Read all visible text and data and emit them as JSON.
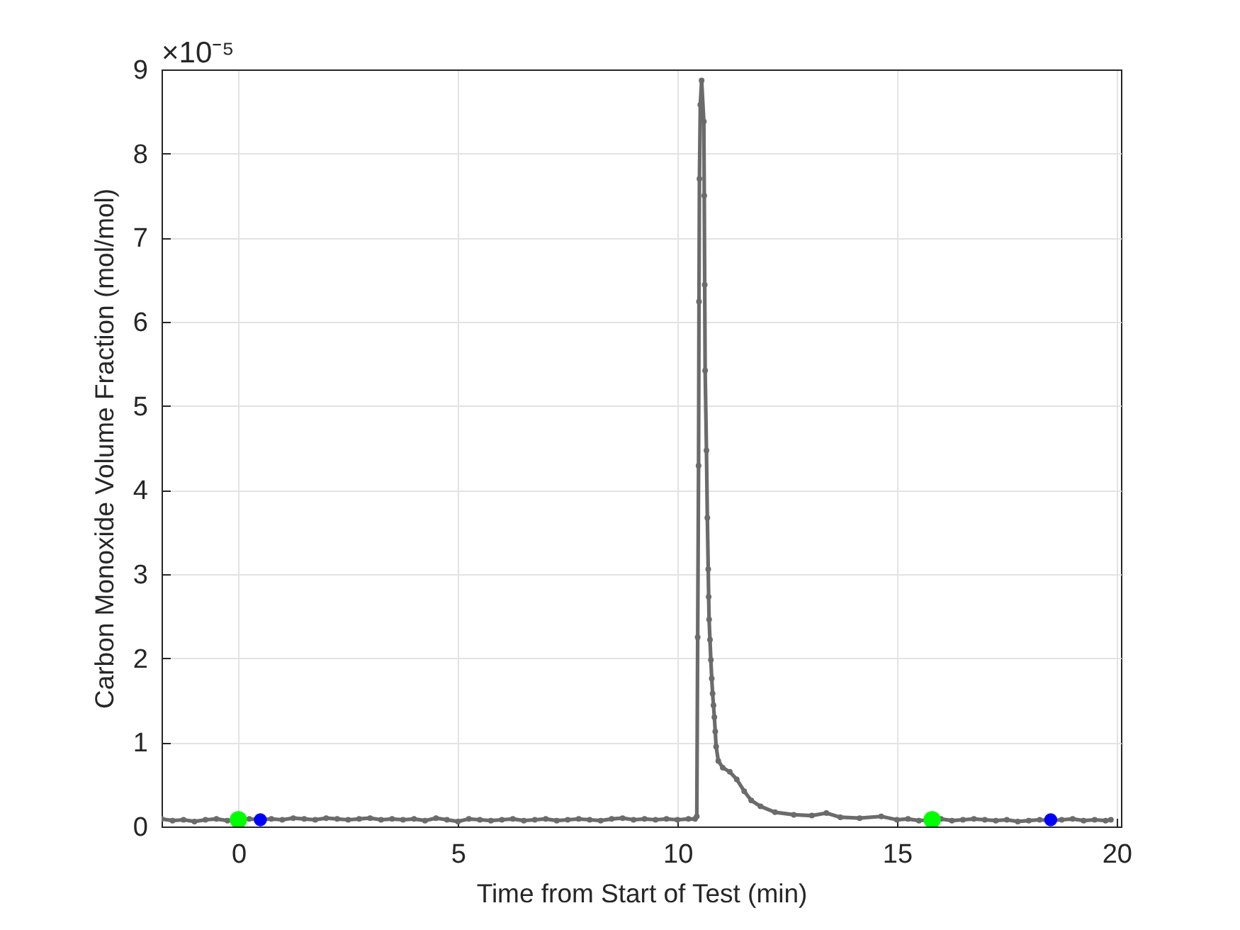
{
  "chart_data": {
    "type": "line",
    "xlabel": "Time from Start of Test (min)",
    "ylabel": "Carbon Monoxide Volume Fraction (mol/mol)",
    "annotations": [
      "×10⁻⁵"
    ],
    "xlim": [
      -1.75,
      20.1
    ],
    "xticks": [
      0,
      5,
      10,
      15,
      20
    ],
    "ylim": [
      0,
      9
    ],
    "yticks": [
      0,
      1,
      2,
      3,
      4,
      5,
      6,
      7,
      8,
      9
    ],
    "grid": true,
    "marker": "circle",
    "line_style": "solid",
    "series": [
      {
        "color": "#6b6b6b",
        "x": [
          -1.75,
          -1.5,
          -1.25,
          -1.0,
          -0.75,
          -0.5,
          -0.25,
          0,
          0.25,
          0.5,
          0.75,
          1.0,
          1.25,
          1.5,
          1.75,
          2.0,
          2.25,
          2.5,
          2.75,
          3.0,
          3.25,
          3.5,
          3.75,
          4.0,
          4.25,
          4.5,
          4.75,
          5.0,
          5.25,
          5.5,
          5.75,
          6.0,
          6.25,
          6.5,
          6.75,
          7.0,
          7.25,
          7.5,
          7.75,
          8.0,
          8.25,
          8.5,
          8.75,
          9.0,
          9.25,
          9.5,
          9.75,
          10.0,
          10.25,
          10.4,
          10.44,
          10.46,
          10.48,
          10.49,
          10.5,
          10.52,
          10.55,
          10.6,
          10.61,
          10.62,
          10.63,
          10.66,
          10.68,
          10.7,
          10.71,
          10.72,
          10.74,
          10.76,
          10.78,
          10.8,
          10.82,
          10.84,
          10.86,
          10.88,
          10.93,
          11.03,
          11.19,
          11.35,
          11.52,
          11.68,
          11.89,
          12.22,
          12.65,
          13.06,
          13.39,
          13.71,
          14.15,
          14.64,
          15.0,
          15.25,
          15.5,
          15.75,
          16.0,
          16.25,
          16.5,
          16.75,
          17.0,
          17.25,
          17.5,
          17.75,
          18.0,
          18.25,
          18.5,
          18.75,
          19.0,
          19.25,
          19.5,
          19.75,
          19.87
        ],
        "values": [
          0.09,
          0.07,
          0.08,
          0.06,
          0.08,
          0.09,
          0.07,
          0.08,
          0.09,
          0.08,
          0.09,
          0.08,
          0.1,
          0.09,
          0.08,
          0.1,
          0.09,
          0.08,
          0.09,
          0.1,
          0.08,
          0.09,
          0.08,
          0.09,
          0.07,
          0.1,
          0.08,
          0.06,
          0.09,
          0.08,
          0.07,
          0.08,
          0.09,
          0.07,
          0.08,
          0.09,
          0.07,
          0.08,
          0.09,
          0.08,
          0.07,
          0.09,
          0.1,
          0.08,
          0.09,
          0.08,
          0.09,
          0.08,
          0.09,
          0.09,
          0.12,
          2.25,
          4.29,
          6.24,
          7.7,
          8.58,
          8.87,
          8.38,
          7.5,
          6.44,
          5.42,
          4.47,
          3.67,
          3.06,
          2.73,
          2.46,
          2.22,
          1.98,
          1.76,
          1.58,
          1.44,
          1.3,
          1.13,
          0.95,
          0.78,
          0.7,
          0.65,
          0.56,
          0.42,
          0.31,
          0.24,
          0.17,
          0.14,
          0.13,
          0.16,
          0.11,
          0.1,
          0.12,
          0.08,
          0.09,
          0.07,
          0.08,
          0.09,
          0.07,
          0.08,
          0.09,
          0.08,
          0.07,
          0.08,
          0.06,
          0.07,
          0.08,
          0.07,
          0.08,
          0.09,
          0.07,
          0.08,
          0.07,
          0.08
        ]
      },
      {
        "type": "scatter",
        "color": "#00ff00",
        "x": [
          0,
          15.8
        ],
        "values": [
          0.08,
          0.08
        ]
      },
      {
        "type": "scatter",
        "color": "#0000ff",
        "x": [
          0.5,
          18.5
        ],
        "values": [
          0.08,
          0.08
        ]
      }
    ]
  }
}
